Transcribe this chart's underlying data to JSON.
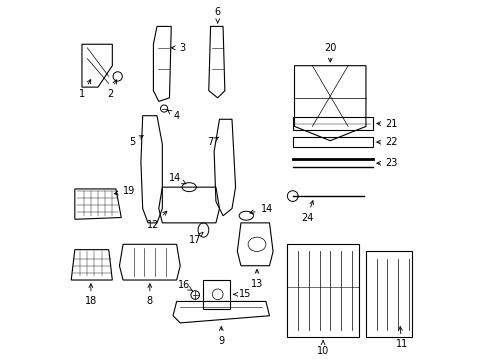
{
  "title": "",
  "background_color": "#ffffff",
  "line_color": "#000000",
  "fig_width": 4.89,
  "fig_height": 3.6,
  "dpi": 100
}
